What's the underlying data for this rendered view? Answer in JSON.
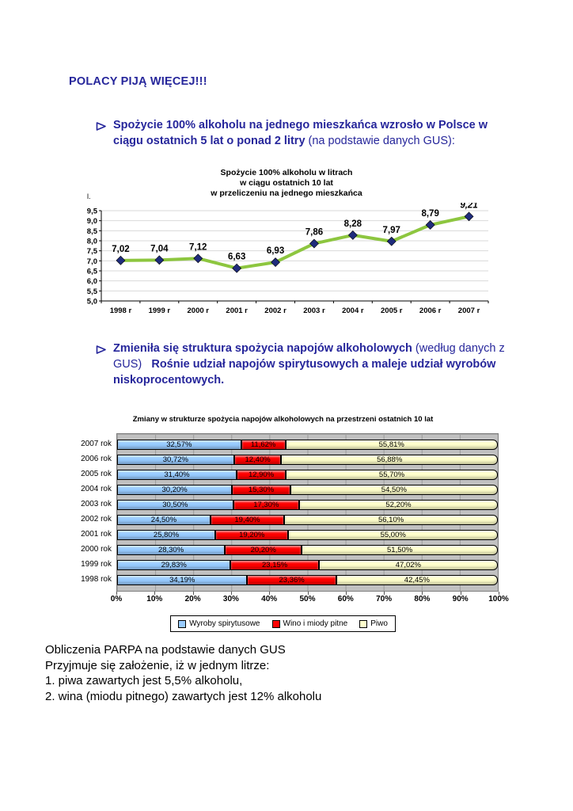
{
  "page": {
    "heading": "POLACY PIJĄ WIĘCEJ!!!",
    "text_color": "#26269B",
    "bullet1": {
      "bold": "Spożycie 100% alkoholu na jednego mieszkańca wzrosło w Polsce w ciągu ostatnich 5 lat o ponad 2 litry",
      "normal": " (na podstawie danych GUS):"
    },
    "bullet2": {
      "bold1": "Zmieniła się struktura spożycia napojów alkoholowych",
      "normal1": " (według danych z GUS)   ",
      "bold2": "Rośnie udział napojów spirytusowych a maleje udział wyrobów niskoprocentowych."
    }
  },
  "chart_data": [
    {
      "type": "line",
      "title_lines": [
        "Spożycie 100% alkoholu w litrach",
        "w ciągu ostatnich 10 lat",
        "w przeliczeniu na jednego mieszkańca"
      ],
      "y_axis_unit": "l.",
      "categories": [
        "1998 r",
        "1999 r",
        "2000 r",
        "2001 r",
        "2002 r",
        "2003 r",
        "2004 r",
        "2005 r",
        "2006 r",
        "2007 r"
      ],
      "values": [
        7.02,
        7.04,
        7.12,
        6.63,
        6.93,
        7.86,
        8.28,
        7.97,
        8.79,
        9.21
      ],
      "data_labels": [
        "7,02",
        "7,04",
        "7,12",
        "6,63",
        "6,93",
        "7,86",
        "8,28",
        "7,97",
        "8,79",
        "9,21"
      ],
      "ylim": [
        5.0,
        9.5
      ],
      "y_step": 0.5,
      "last_label_italic": true,
      "line_color": "#8DC63F",
      "marker_color": "#1F2C7C",
      "gridline_color": "#D9D9D9",
      "legend_position": "none",
      "grid": true
    },
    {
      "type": "stacked-bar-horizontal",
      "title": "Zmiany w strukturze spożycia napojów alkoholowych na przestrzeni ostatnich 10 lat",
      "categories": [
        "2007 rok",
        "2006 rok",
        "2005 rok",
        "2004 rok",
        "2003 rok",
        "2002 rok",
        "2001 rok",
        "2000 rok",
        "1999 rok",
        "1998 rok"
      ],
      "series": [
        {
          "name": "Wyroby spirytusowe",
          "color": "#99CCFF",
          "values": [
            32.57,
            30.72,
            31.4,
            30.2,
            30.5,
            24.5,
            25.8,
            28.3,
            29.83,
            34.19
          ]
        },
        {
          "name": "Wino i miody pitne",
          "color": "#FF0000",
          "values": [
            11.62,
            12.4,
            12.9,
            15.3,
            17.3,
            19.4,
            19.2,
            20.2,
            23.15,
            23.36
          ]
        },
        {
          "name": "Piwo",
          "color": "#FFFFCC",
          "values": [
            55.81,
            56.88,
            55.7,
            54.5,
            52.2,
            56.1,
            55.0,
            51.5,
            47.02,
            42.45
          ]
        }
      ],
      "xlim": [
        0,
        100
      ],
      "x_tick_step": 10,
      "x_tick_suffix": "%",
      "plot_bg": "#C0C0C0",
      "legend_position": "bottom"
    }
  ],
  "footer": {
    "lines": [
      "Obliczenia PARPA na podstawie danych GUS",
      "Przyjmuje się założenie, iż w jednym litrze:",
      "1. piwa zawartych jest 5,5% alkoholu,",
      "2. wina (miodu pitnego) zawartych jest 12% alkoholu"
    ]
  }
}
